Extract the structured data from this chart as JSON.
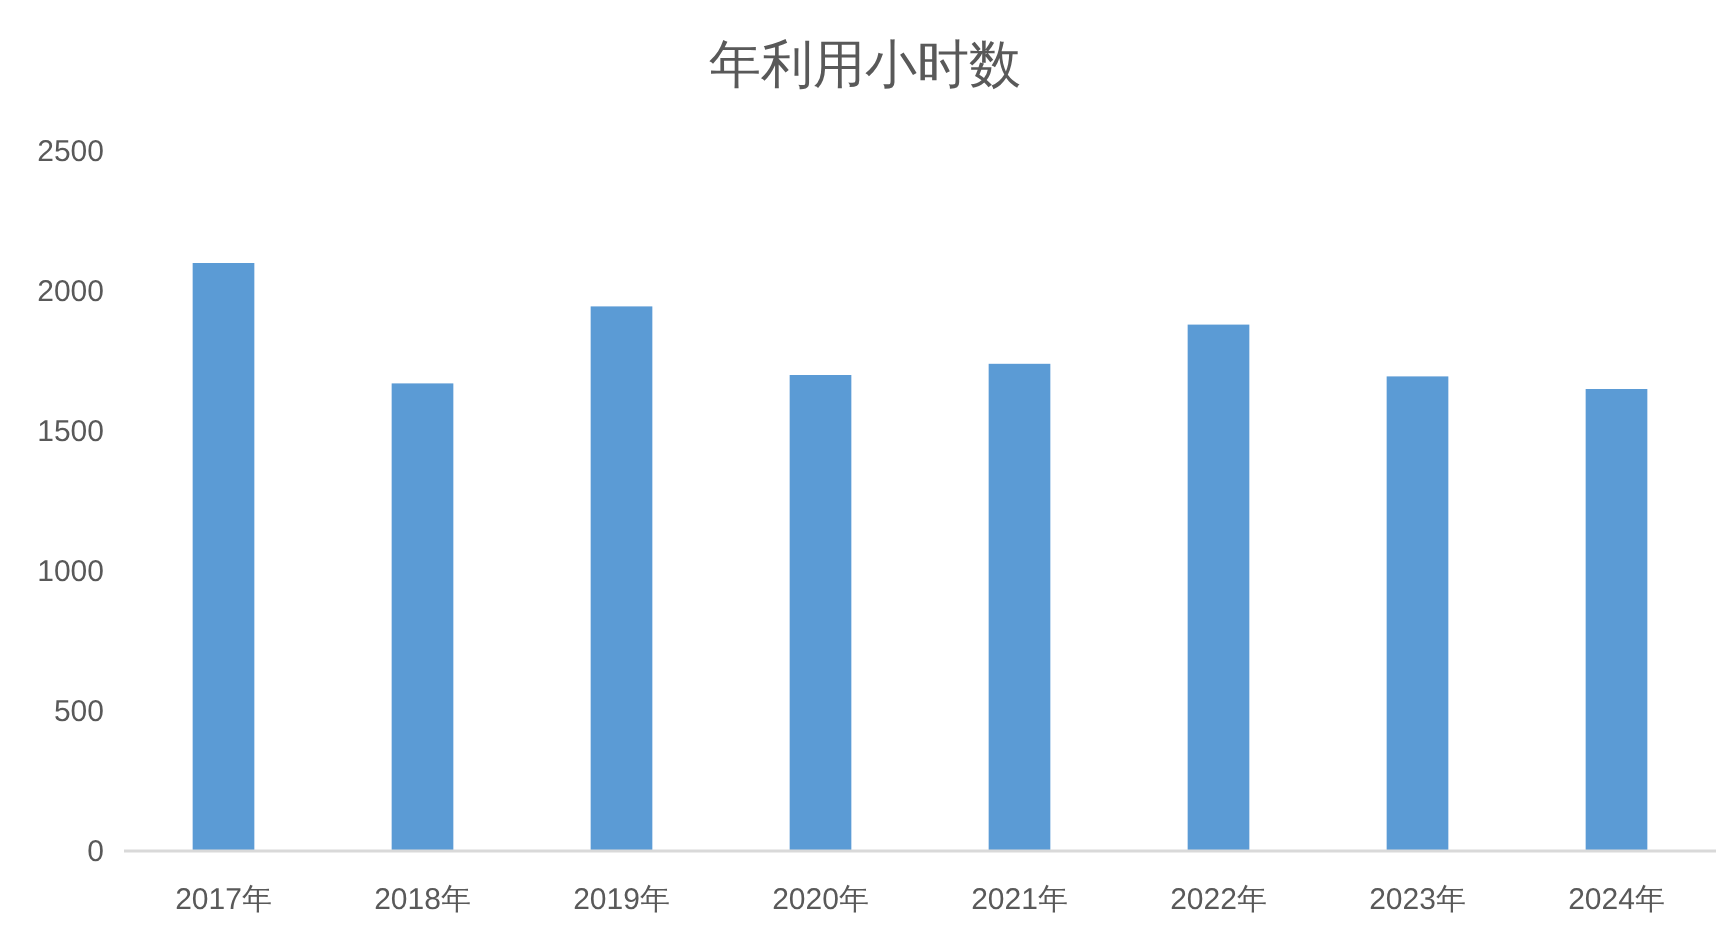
{
  "chart_data": {
    "type": "bar",
    "title": "年利用小时数",
    "categories": [
      "2017年",
      "2018年",
      "2019年",
      "2020年",
      "2021年",
      "2022年",
      "2023年",
      "2024年"
    ],
    "values": [
      2100,
      1670,
      1945,
      1700,
      1740,
      1880,
      1695,
      1650
    ],
    "color": "#5b9bd5",
    "ylim": [
      0,
      2500
    ],
    "yticks": [
      0,
      500,
      1000,
      1500,
      2000,
      2500
    ]
  }
}
